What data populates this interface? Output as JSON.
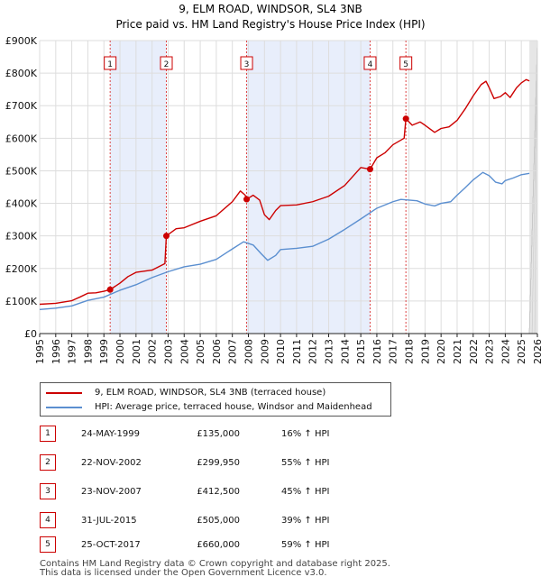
{
  "chart_data": {
    "type": "line",
    "title": "9, ELM ROAD, WINDSOR, SL4 3NB",
    "subtitle": "Price paid vs. HM Land Registry's House Price Index (HPI)",
    "xlim": [
      1995,
      2026
    ],
    "ylim": [
      0,
      900000
    ],
    "x_ticks": [
      "1995",
      "1996",
      "1997",
      "1998",
      "1999",
      "2000",
      "2001",
      "2002",
      "2003",
      "2004",
      "2005",
      "2006",
      "2007",
      "2008",
      "2009",
      "2010",
      "2011",
      "2012",
      "2013",
      "2014",
      "2015",
      "2016",
      "2017",
      "2018",
      "2019",
      "2020",
      "2021",
      "2022",
      "2023",
      "2024",
      "2025",
      "2026"
    ],
    "y_ticks": [
      {
        "value": 0,
        "label": "£0"
      },
      {
        "value": 100000,
        "label": "£100K"
      },
      {
        "value": 200000,
        "label": "£200K"
      },
      {
        "value": 300000,
        "label": "£300K"
      },
      {
        "value": 400000,
        "label": "£400K"
      },
      {
        "value": 500000,
        "label": "£500K"
      },
      {
        "value": 600000,
        "label": "£600K"
      },
      {
        "value": 700000,
        "label": "£700K"
      },
      {
        "value": 800000,
        "label": "£800K"
      },
      {
        "value": 900000,
        "label": "£900K"
      }
    ],
    "grid": true,
    "series": [
      {
        "name": "9, ELM ROAD, WINDSOR, SL4 3NB (terraced house)",
        "color": "#cc0000",
        "points": [
          [
            1995.0,
            90000
          ],
          [
            1996.0,
            93000
          ],
          [
            1997.0,
            101000
          ],
          [
            1997.5,
            112000
          ],
          [
            1998.0,
            124000
          ],
          [
            1998.5,
            125000
          ],
          [
            1999.0,
            130000
          ],
          [
            1999.39,
            135000
          ],
          [
            2000.0,
            155000
          ],
          [
            2000.5,
            175000
          ],
          [
            2001.0,
            188000
          ],
          [
            2002.0,
            195000
          ],
          [
            2002.8,
            215000
          ],
          [
            2002.89,
            299950
          ],
          [
            2003.5,
            322000
          ],
          [
            2004.0,
            325000
          ],
          [
            2005.0,
            345000
          ],
          [
            2006.0,
            362000
          ],
          [
            2007.0,
            405000
          ],
          [
            2007.5,
            438000
          ],
          [
            2007.8,
            425000
          ],
          [
            2007.89,
            412500
          ],
          [
            2008.3,
            425000
          ],
          [
            2008.7,
            410000
          ],
          [
            2009.0,
            365000
          ],
          [
            2009.3,
            350000
          ],
          [
            2009.7,
            378000
          ],
          [
            2010.0,
            393000
          ],
          [
            2011.0,
            395000
          ],
          [
            2012.0,
            405000
          ],
          [
            2013.0,
            422000
          ],
          [
            2014.0,
            455000
          ],
          [
            2015.0,
            510000
          ],
          [
            2015.58,
            505000
          ],
          [
            2016.0,
            540000
          ],
          [
            2016.5,
            555000
          ],
          [
            2017.0,
            580000
          ],
          [
            2017.7,
            600000
          ],
          [
            2017.81,
            660000
          ],
          [
            2018.2,
            640000
          ],
          [
            2018.7,
            650000
          ],
          [
            2019.0,
            640000
          ],
          [
            2019.6,
            618000
          ],
          [
            2020.0,
            630000
          ],
          [
            2020.5,
            635000
          ],
          [
            2021.0,
            655000
          ],
          [
            2021.5,
            690000
          ],
          [
            2022.0,
            730000
          ],
          [
            2022.5,
            765000
          ],
          [
            2022.8,
            775000
          ],
          [
            2023.0,
            755000
          ],
          [
            2023.3,
            722000
          ],
          [
            2023.7,
            728000
          ],
          [
            2024.0,
            740000
          ],
          [
            2024.3,
            725000
          ],
          [
            2024.7,
            755000
          ],
          [
            2025.0,
            770000
          ],
          [
            2025.3,
            780000
          ],
          [
            2025.5,
            776000
          ]
        ]
      },
      {
        "name": "HPI: Average price, terraced house, Windsor and Maidenhead",
        "color": "#5b8fd0",
        "points": [
          [
            1995.0,
            74000
          ],
          [
            1996.0,
            78000
          ],
          [
            1997.0,
            85000
          ],
          [
            1998.0,
            102000
          ],
          [
            1999.0,
            112000
          ],
          [
            2000.0,
            133000
          ],
          [
            2001.0,
            150000
          ],
          [
            2002.0,
            172000
          ],
          [
            2003.0,
            190000
          ],
          [
            2004.0,
            205000
          ],
          [
            2005.0,
            213000
          ],
          [
            2006.0,
            228000
          ],
          [
            2007.0,
            260000
          ],
          [
            2007.7,
            282000
          ],
          [
            2008.3,
            272000
          ],
          [
            2008.8,
            245000
          ],
          [
            2009.2,
            225000
          ],
          [
            2009.7,
            240000
          ],
          [
            2010.0,
            258000
          ],
          [
            2011.0,
            262000
          ],
          [
            2012.0,
            268000
          ],
          [
            2013.0,
            290000
          ],
          [
            2014.0,
            320000
          ],
          [
            2015.0,
            352000
          ],
          [
            2016.0,
            385000
          ],
          [
            2017.0,
            405000
          ],
          [
            2017.5,
            412000
          ],
          [
            2018.0,
            410000
          ],
          [
            2018.5,
            408000
          ],
          [
            2019.0,
            398000
          ],
          [
            2019.6,
            392000
          ],
          [
            2020.0,
            400000
          ],
          [
            2020.6,
            405000
          ],
          [
            2021.0,
            425000
          ],
          [
            2021.5,
            448000
          ],
          [
            2022.0,
            472000
          ],
          [
            2022.6,
            495000
          ],
          [
            2023.0,
            485000
          ],
          [
            2023.4,
            465000
          ],
          [
            2023.8,
            460000
          ],
          [
            2024.0,
            470000
          ],
          [
            2024.5,
            478000
          ],
          [
            2025.0,
            488000
          ],
          [
            2025.5,
            492000
          ]
        ]
      }
    ],
    "transactions": [
      {
        "label": "1",
        "date": "24-MAY-1999",
        "x": 1999.39,
        "price_value": 135000,
        "price": "£135,000",
        "hpi": "16% ↑ HPI"
      },
      {
        "label": "2",
        "date": "22-NOV-2002",
        "x": 2002.89,
        "price_value": 299950,
        "price": "£299,950",
        "hpi": "55% ↑ HPI"
      },
      {
        "label": "3",
        "date": "23-NOV-2007",
        "x": 2007.89,
        "price_value": 412500,
        "price": "£412,500",
        "hpi": "45% ↑ HPI"
      },
      {
        "label": "4",
        "date": "31-JUL-2015",
        "x": 2015.58,
        "price_value": 505000,
        "price": "£505,000",
        "hpi": "39% ↑ HPI"
      },
      {
        "label": "5",
        "date": "25-OCT-2017",
        "x": 2017.81,
        "price_value": 660000,
        "price": "£660,000",
        "hpi": "59% ↑ HPI"
      }
    ],
    "highlight_color": "#e8eefb",
    "future_from": 2025.5
  },
  "legend": {
    "property_label": "9, ELM ROAD, WINDSOR, SL4 3NB (terraced house)",
    "hpi_label": "HPI: Average price, terraced house, Windsor and Maidenhead"
  },
  "footer": {
    "line1": "Contains HM Land Registry data © Crown copyright and database right 2025.",
    "line2": "This data is licensed under the Open Government Licence v3.0."
  }
}
